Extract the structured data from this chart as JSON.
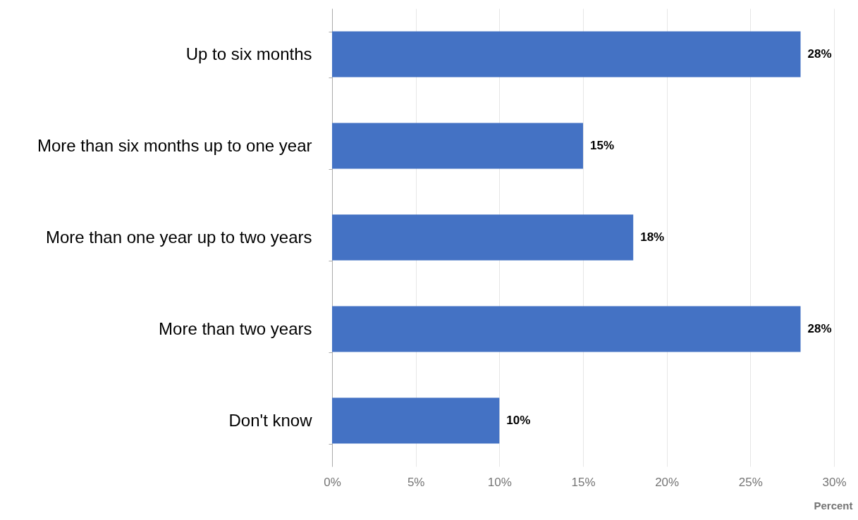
{
  "chart_data": {
    "type": "bar",
    "orientation": "horizontal",
    "xlabel": "Percent",
    "categories": [
      "Up to six months",
      "More than six months up to one year",
      "More than one year up to two years",
      "More than two years",
      "Don't know"
    ],
    "values": [
      28,
      15,
      18,
      28,
      10
    ],
    "value_labels": [
      "28%",
      "15%",
      "18%",
      "28%",
      "10%"
    ],
    "color": "#4472c4",
    "xlim": [
      0,
      30
    ],
    "xticks": [
      {
        "value": 0,
        "label": "0%"
      },
      {
        "value": 5,
        "label": "5%"
      },
      {
        "value": 10,
        "label": "10%"
      },
      {
        "value": 15,
        "label": "15%"
      },
      {
        "value": 20,
        "label": "20%"
      },
      {
        "value": 25,
        "label": "25%"
      },
      {
        "value": 30,
        "label": "30%"
      }
    ],
    "grid": "x"
  }
}
